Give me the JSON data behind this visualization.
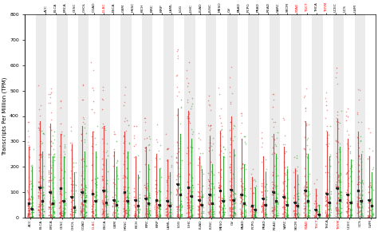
{
  "cancer_types": [
    "ACC",
    "BLCA",
    "BRCA",
    "CESC",
    "CHOL",
    "COAD",
    "DLBC",
    "ESCA",
    "GBM",
    "HNSC",
    "KICH",
    "KIRC",
    "KIRP",
    "LAML",
    "LGG",
    "LIHC",
    "LUAD",
    "LUSC",
    "MESO",
    "OV",
    "PAAD",
    "PCPG",
    "PRAD",
    "READ",
    "SARC",
    "SKCM",
    "STAD",
    "TGCT",
    "THCA",
    "THYM",
    "UCEC",
    "UCS",
    "UVM"
  ],
  "highlighted_red": [
    "DLBC",
    "STAD",
    "TGCT",
    "THYM"
  ],
  "ylim": [
    0,
    800
  ],
  "yticks": [
    0,
    100,
    200,
    300,
    400,
    500,
    600,
    700,
    800
  ],
  "ylabel": "Transcripts Per Million (TPM)",
  "background_alt": "#ebebeb",
  "background_main": "#ffffff",
  "tumor_color": "#e03030",
  "normal_color": "#20a020",
  "median_color": "#222222",
  "seed": 42,
  "median_tumor": [
    55,
    120,
    100,
    115,
    80,
    100,
    95,
    105,
    70,
    100,
    70,
    75,
    70,
    65,
    130,
    120,
    70,
    90,
    105,
    110,
    90,
    45,
    75,
    100,
    80,
    60,
    105,
    30,
    95,
    115,
    90,
    105,
    70
  ],
  "median_normal": [
    35,
    65,
    55,
    65,
    40,
    65,
    65,
    60,
    50,
    65,
    45,
    55,
    50,
    45,
    90,
    85,
    50,
    55,
    65,
    70,
    55,
    30,
    50,
    65,
    50,
    45,
    65,
    12,
    60,
    70,
    60,
    65,
    45
  ],
  "line_top_tumor": [
    280,
    380,
    370,
    330,
    290,
    360,
    340,
    360,
    260,
    340,
    240,
    280,
    250,
    230,
    430,
    420,
    240,
    320,
    340,
    400,
    310,
    160,
    240,
    330,
    280,
    190,
    380,
    110,
    340,
    390,
    310,
    340,
    240
  ],
  "line_top_normal": [
    200,
    260,
    240,
    240,
    180,
    260,
    260,
    230,
    200,
    260,
    170,
    210,
    190,
    180,
    330,
    310,
    190,
    210,
    240,
    270,
    210,
    120,
    180,
    250,
    190,
    170,
    250,
    50,
    240,
    280,
    230,
    250,
    180
  ],
  "n_tumor_dots": [
    40,
    50,
    55,
    45,
    30,
    50,
    35,
    45,
    30,
    48,
    25,
    40,
    35,
    28,
    50,
    55,
    35,
    45,
    42,
    52,
    40,
    20,
    32,
    44,
    36,
    25,
    52,
    18,
    44,
    50,
    40,
    44,
    28
  ],
  "n_normal_dots": [
    28,
    36,
    38,
    32,
    22,
    36,
    26,
    32,
    22,
    36,
    18,
    28,
    25,
    20,
    36,
    40,
    25,
    32,
    30,
    38,
    28,
    15,
    22,
    32,
    25,
    18,
    36,
    12,
    32,
    38,
    28,
    32,
    20
  ],
  "outlier_max_tumor": [
    380,
    580,
    560,
    500,
    430,
    550,
    620,
    520,
    390,
    520,
    360,
    430,
    380,
    350,
    680,
    650,
    360,
    480,
    520,
    600,
    470,
    240,
    360,
    500,
    420,
    280,
    570,
    165,
    510,
    590,
    480,
    520,
    360
  ],
  "outlier_max_normal": [
    280,
    390,
    370,
    360,
    260,
    390,
    400,
    350,
    300,
    390,
    250,
    320,
    290,
    270,
    510,
    470,
    290,
    320,
    360,
    410,
    320,
    180,
    270,
    380,
    290,
    250,
    380,
    75,
    360,
    420,
    360,
    380,
    270
  ]
}
